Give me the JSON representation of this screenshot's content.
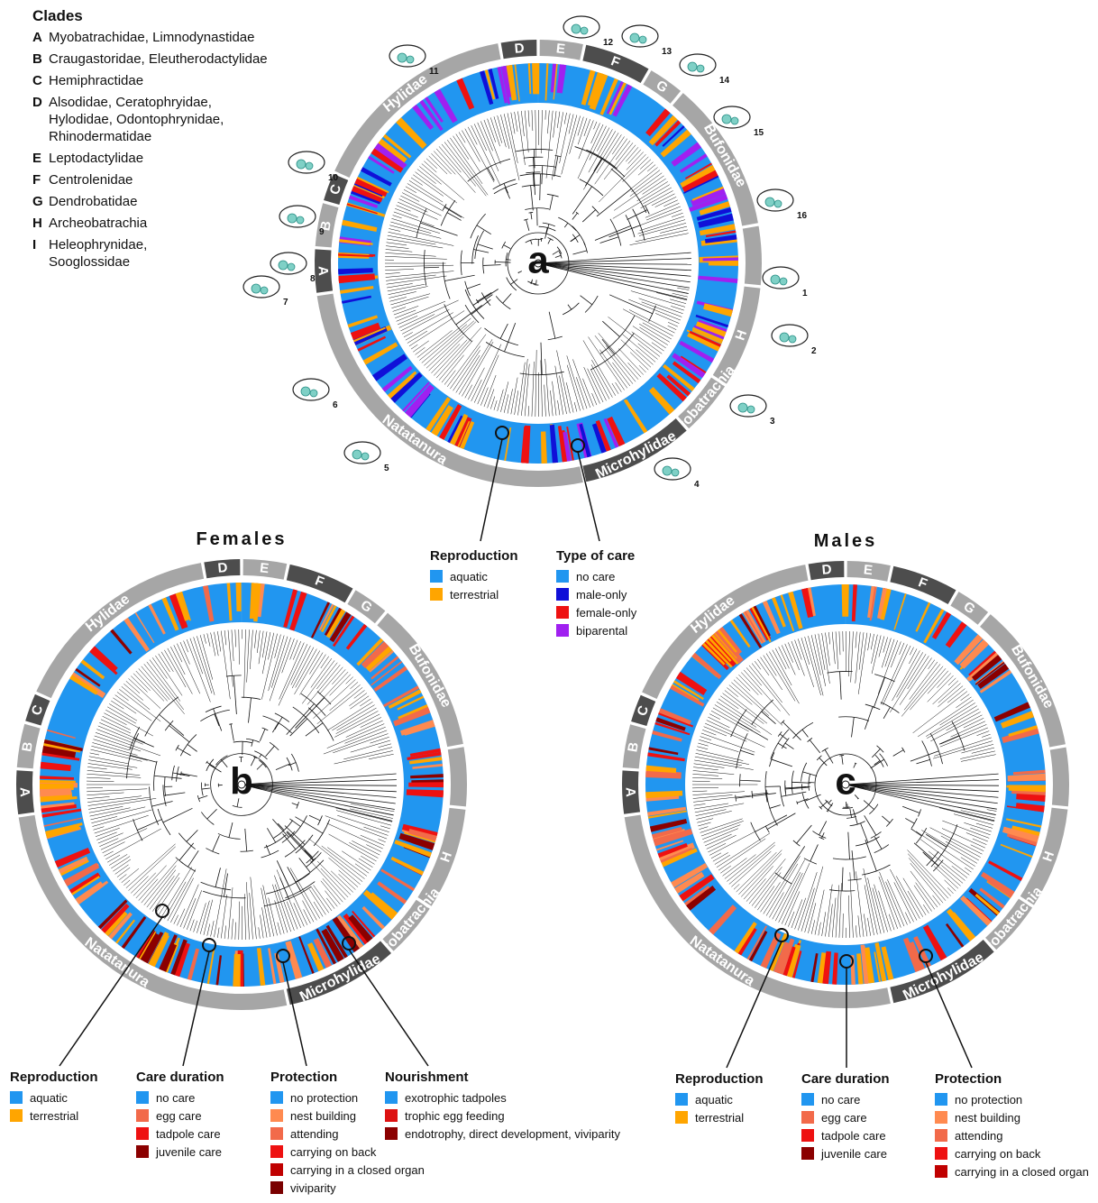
{
  "clades": {
    "title": "Clades",
    "items": [
      {
        "key": "A",
        "text": "Myobatrachidae, Limnodynastidae"
      },
      {
        "key": "B",
        "text": "Craugastoridae, Eleutherodactylidae"
      },
      {
        "key": "C",
        "text": "Hemiphractidae"
      },
      {
        "key": "D",
        "text": "Alsodidae, Ceratophryidae,\nHylodidae, Odontophrynidae,\nRhinodermatidae"
      },
      {
        "key": "E",
        "text": "Leptodactylidae"
      },
      {
        "key": "F",
        "text": "Centrolenidae"
      },
      {
        "key": "G",
        "text": "Dendrobatidae"
      },
      {
        "key": "H",
        "text": "Archeobatrachia"
      },
      {
        "key": "I",
        "text": "Heleophrynidae,\nSooglossidae"
      }
    ]
  },
  "trees": [
    {
      "id": "a",
      "letter": "a",
      "title": ""
    },
    {
      "id": "b",
      "letter": "b",
      "title": "Females"
    },
    {
      "id": "c",
      "letter": "c",
      "title": "Males"
    }
  ],
  "clade_labels": {
    "hylidae": "Hylidae",
    "bufonidae": "Bufonidae",
    "microhylidae": "Microhylidae",
    "natatanura": "Natatanura",
    "afrobatrachia": "Afrobatrachia",
    "a": "A",
    "b": "B",
    "c": "C",
    "d": "D",
    "e": "E",
    "f": "F",
    "g": "G",
    "h": "H"
  },
  "illustration_numbers": [
    "1",
    "2",
    "3",
    "4",
    "5",
    "6",
    "7",
    "8",
    "9",
    "10",
    "11",
    "12",
    "13",
    "14",
    "15",
    "16"
  ],
  "colors": {
    "aquatic": "#2196f0",
    "terrestrial": "#ffa500",
    "no_care": "#2196f0",
    "male_only": "#1010d8",
    "female_only": "#ee1111",
    "biparental": "#a020f0",
    "no_protection": "#2196f0",
    "nest_building": "#ff8a50",
    "attending": "#f26a4a",
    "carrying_on_back": "#ee1111",
    "carrying_closed_organ": "#c00000",
    "viviparity": "#7a0000",
    "egg_care": "#f26a4a",
    "tadpole_care": "#ee1111",
    "juvenile_care": "#8b0000",
    "exotrophic_tadpoles": "#2196f0",
    "trophic_egg_feeding": "#dd1111",
    "endotrophy": "#8b0000",
    "ring_light": "#a6a6a6",
    "ring_dark": "#4d4d4d"
  },
  "legends": {
    "a_reproduction": {
      "title": "Reproduction",
      "items": [
        {
          "label": "aquatic",
          "color": "#2196f0"
        },
        {
          "label": "terrestrial",
          "color": "#ffa500"
        }
      ]
    },
    "a_type_of_care": {
      "title": "Type of care",
      "items": [
        {
          "label": "no care",
          "color": "#2196f0"
        },
        {
          "label": "male-only",
          "color": "#1010d8"
        },
        {
          "label": "female-only",
          "color": "#ee1111"
        },
        {
          "label": "biparental",
          "color": "#a020f0"
        }
      ]
    },
    "b_reproduction": {
      "title": "Reproduction",
      "items": [
        {
          "label": "aquatic",
          "color": "#2196f0"
        },
        {
          "label": "terrestrial",
          "color": "#ffa500"
        }
      ]
    },
    "b_care_duration": {
      "title": "Care duration",
      "items": [
        {
          "label": "no care",
          "color": "#2196f0"
        },
        {
          "label": "egg care",
          "color": "#f26a4a"
        },
        {
          "label": "tadpole care",
          "color": "#ee1111"
        },
        {
          "label": "juvenile care",
          "color": "#8b0000"
        }
      ]
    },
    "b_protection": {
      "title": "Protection",
      "items": [
        {
          "label": "no protection",
          "color": "#2196f0"
        },
        {
          "label": "nest building",
          "color": "#ff8a50"
        },
        {
          "label": "attending",
          "color": "#f26a4a"
        },
        {
          "label": "carrying on back",
          "color": "#ee1111"
        },
        {
          "label": "carrying in a closed organ",
          "color": "#c00000"
        },
        {
          "label": "viviparity",
          "color": "#7a0000"
        }
      ]
    },
    "b_nourishment": {
      "title": "Nourishment",
      "items": [
        {
          "label": "exotrophic tadpoles",
          "color": "#2196f0"
        },
        {
          "label": "trophic egg feeding",
          "color": "#dd1111"
        },
        {
          "label": "endotrophy, direct development, viviparity",
          "color": "#8b0000"
        }
      ]
    },
    "c_reproduction": {
      "title": "Reproduction",
      "items": [
        {
          "label": "aquatic",
          "color": "#2196f0"
        },
        {
          "label": "terrestrial",
          "color": "#ffa500"
        }
      ]
    },
    "c_care_duration": {
      "title": "Care duration",
      "items": [
        {
          "label": "no care",
          "color": "#2196f0"
        },
        {
          "label": "egg care",
          "color": "#f26a4a"
        },
        {
          "label": "tadpole care",
          "color": "#ee1111"
        },
        {
          "label": "juvenile care",
          "color": "#8b0000"
        }
      ]
    },
    "c_protection": {
      "title": "Protection",
      "items": [
        {
          "label": "no protection",
          "color": "#2196f0"
        },
        {
          "label": "nest building",
          "color": "#ff8a50"
        },
        {
          "label": "attending",
          "color": "#f26a4a"
        },
        {
          "label": "carrying on back",
          "color": "#ee1111"
        },
        {
          "label": "carrying in a closed organ",
          "color": "#c00000"
        }
      ]
    }
  }
}
